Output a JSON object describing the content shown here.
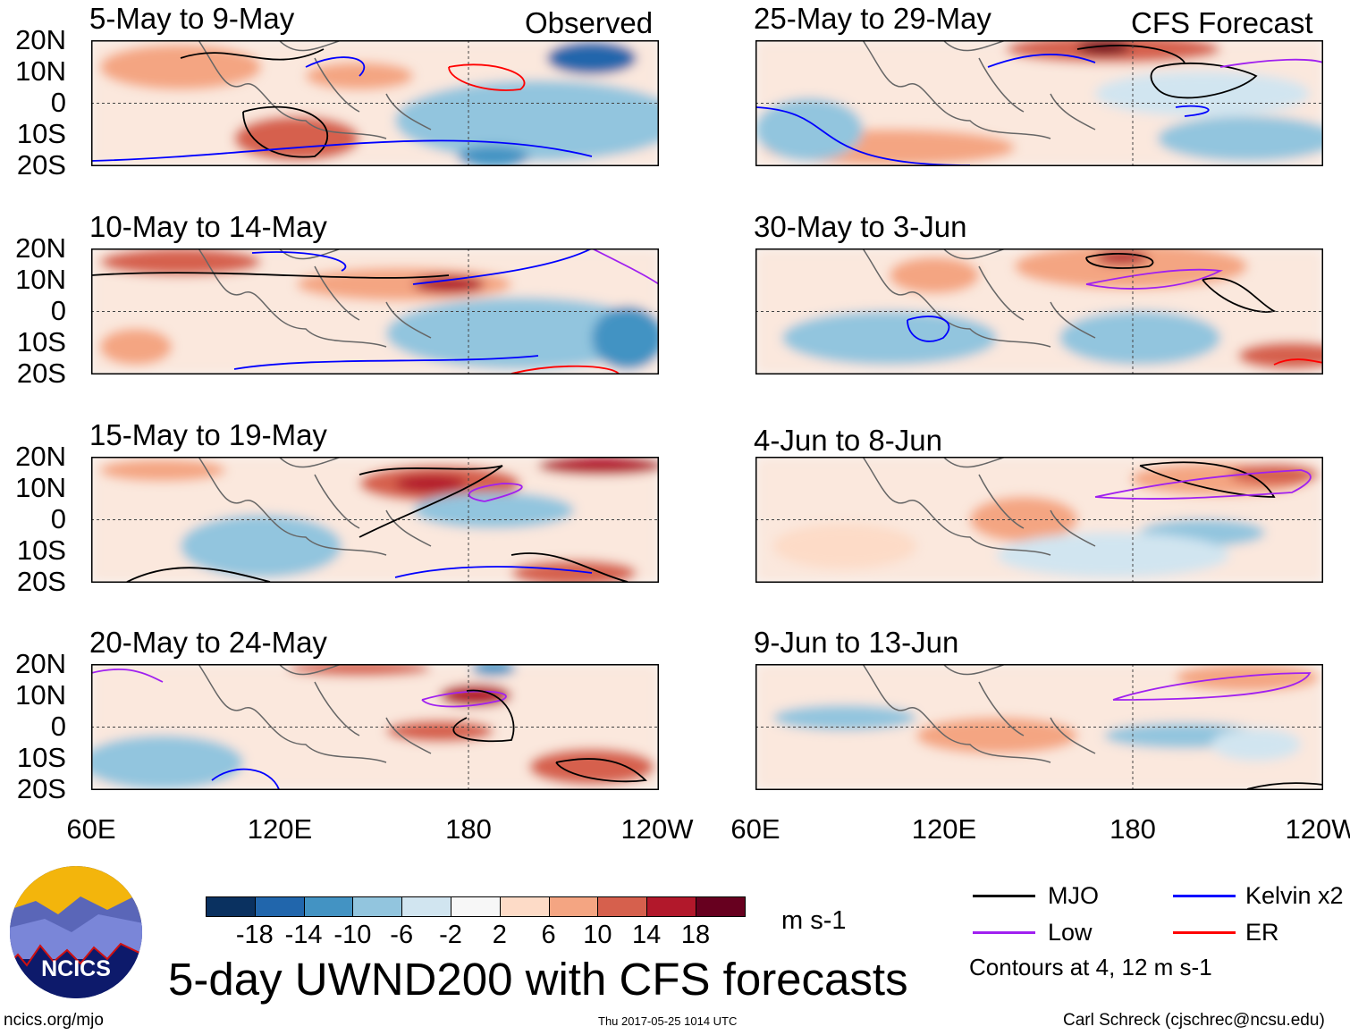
{
  "headers": {
    "left": "Observed",
    "right": "CFS Forecast"
  },
  "panels": [
    {
      "title": "5-May to 9-May",
      "column": "observed"
    },
    {
      "title": "10-May to 14-May",
      "column": "observed"
    },
    {
      "title": "15-May to 19-May",
      "column": "observed"
    },
    {
      "title": "20-May to 24-May",
      "column": "observed"
    },
    {
      "title": "25-May to 29-May",
      "column": "forecast"
    },
    {
      "title": "30-May to 3-Jun",
      "column": "forecast"
    },
    {
      "title": "4-Jun to 8-Jun",
      "column": "forecast"
    },
    {
      "title": "9-Jun to 13-Jun",
      "column": "forecast"
    }
  ],
  "y_ticks": [
    "20N",
    "10N",
    "0",
    "10S",
    "20S"
  ],
  "x_ticks": [
    "60E",
    "120E",
    "180",
    "120W"
  ],
  "colorbar": {
    "colors": [
      "#0a3160",
      "#2166ac",
      "#4393c3",
      "#92c5de",
      "#d1e5f0",
      "#f7f7f7",
      "#fddbc7",
      "#f4a582",
      "#d6604d",
      "#b2182b",
      "#67001f"
    ],
    "labels": [
      "-18",
      "-14",
      "-10",
      "-6",
      "-2",
      "2",
      "6",
      "10",
      "14",
      "18"
    ],
    "units": "m s-1"
  },
  "legend": {
    "items": [
      {
        "label": "MJO",
        "color": "#000000"
      },
      {
        "label": "Kelvin x2",
        "color": "#0000ff"
      },
      {
        "label": "Low",
        "color": "#a020f0"
      },
      {
        "label": "ER",
        "color": "#ff0000"
      }
    ],
    "contours_note": "Contours at 4, 12 m s-1"
  },
  "logo": {
    "text": "NCICS"
  },
  "main_title": "5-day UWND200 with CFS forecasts",
  "footer": {
    "url": "ncics.org/mjo",
    "timestamp": "Thu 2017-05-25 1014 UTC",
    "author": "Carl Schreck (cjschrec@ncsu.edu)"
  }
}
